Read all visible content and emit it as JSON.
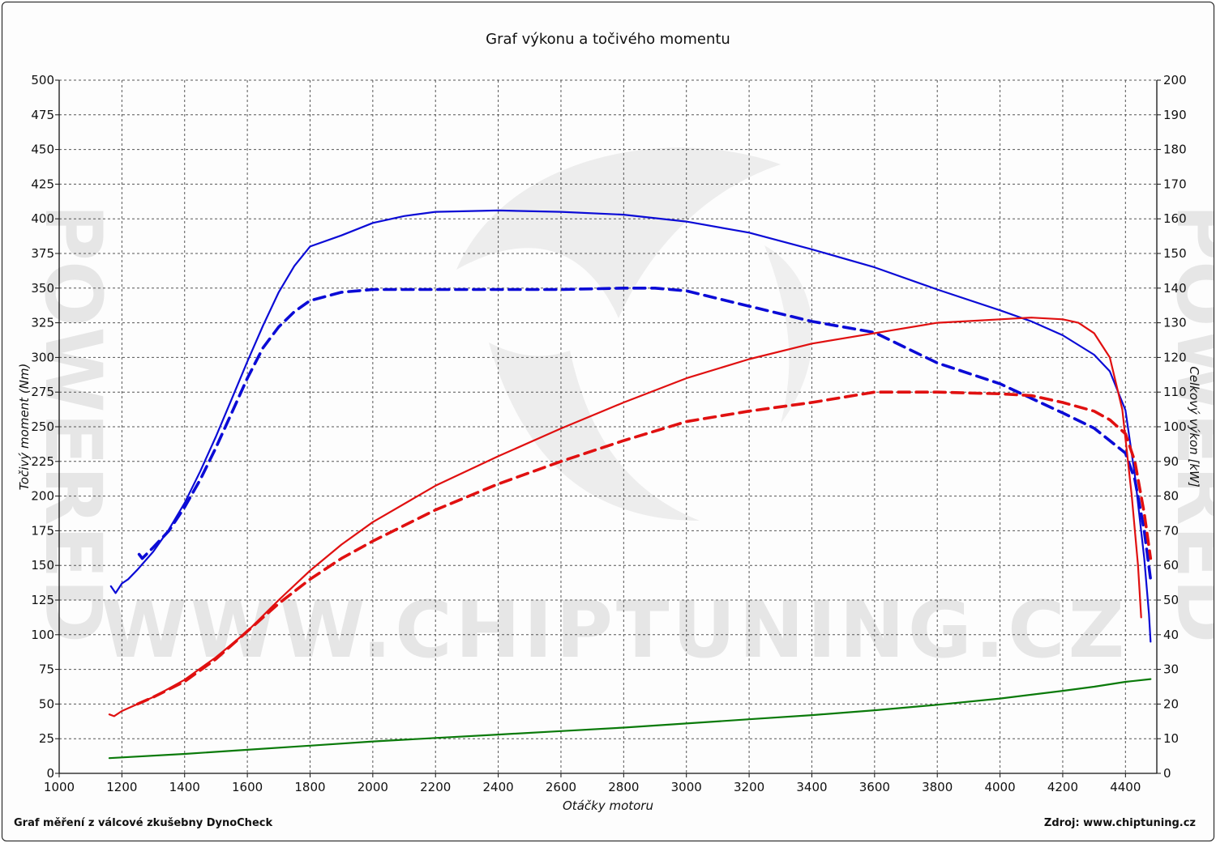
{
  "chart_data": {
    "type": "line",
    "title": "Graf výkonu a točivého momentu",
    "xlabel": "Otáčky motoru",
    "ylabel_left": "Točivý moment (Nm)",
    "ylabel_right": "Celkový výkon [kW]",
    "xlim": [
      1000,
      4500
    ],
    "ylim_left": [
      0,
      500
    ],
    "ylim_right": [
      0,
      200
    ],
    "x_ticks": [
      1000,
      1200,
      1400,
      1600,
      1800,
      2000,
      2200,
      2400,
      2600,
      2800,
      3000,
      3200,
      3400,
      3600,
      3800,
      4000,
      4200,
      4400
    ],
    "y_ticks_left": [
      0,
      25,
      50,
      75,
      100,
      125,
      150,
      175,
      200,
      225,
      250,
      275,
      300,
      325,
      350,
      375,
      400,
      425,
      450,
      475,
      500
    ],
    "y_ticks_right": [
      0,
      10,
      20,
      30,
      40,
      50,
      60,
      70,
      80,
      90,
      100,
      110,
      120,
      130,
      140,
      150,
      160,
      170,
      180,
      190,
      200
    ],
    "grid": true,
    "legend": "none",
    "series": [
      {
        "color": "#0b0bd6",
        "style": "solid",
        "axis": "left",
        "points": [
          [
            1165,
            135
          ],
          [
            1180,
            130
          ],
          [
            1200,
            137
          ],
          [
            1220,
            140
          ],
          [
            1250,
            147
          ],
          [
            1300,
            160
          ],
          [
            1350,
            176
          ],
          [
            1400,
            195
          ],
          [
            1450,
            218
          ],
          [
            1500,
            243
          ],
          [
            1550,
            270
          ],
          [
            1600,
            297
          ],
          [
            1650,
            323
          ],
          [
            1700,
            347
          ],
          [
            1750,
            366
          ],
          [
            1800,
            380
          ],
          [
            1900,
            388
          ],
          [
            2000,
            397
          ],
          [
            2100,
            402
          ],
          [
            2200,
            405
          ],
          [
            2400,
            406
          ],
          [
            2600,
            405
          ],
          [
            2800,
            403
          ],
          [
            3000,
            398
          ],
          [
            3200,
            390
          ],
          [
            3400,
            378
          ],
          [
            3600,
            365
          ],
          [
            3800,
            349
          ],
          [
            4000,
            334
          ],
          [
            4100,
            326
          ],
          [
            4200,
            316
          ],
          [
            4300,
            302
          ],
          [
            4350,
            290
          ],
          [
            4400,
            262
          ],
          [
            4430,
            215
          ],
          [
            4460,
            155
          ],
          [
            4475,
            115
          ],
          [
            4480,
            95
          ]
        ]
      },
      {
        "color": "#0b0bd6",
        "style": "dashed",
        "axis": "left",
        "points": [
          [
            1255,
            158
          ],
          [
            1265,
            155
          ],
          [
            1300,
            163
          ],
          [
            1350,
            175
          ],
          [
            1400,
            192
          ],
          [
            1450,
            212
          ],
          [
            1500,
            235
          ],
          [
            1550,
            260
          ],
          [
            1600,
            285
          ],
          [
            1650,
            307
          ],
          [
            1700,
            322
          ],
          [
            1750,
            333
          ],
          [
            1800,
            341
          ],
          [
            1900,
            347
          ],
          [
            2000,
            349
          ],
          [
            2200,
            349
          ],
          [
            2400,
            349
          ],
          [
            2600,
            349
          ],
          [
            2800,
            350
          ],
          [
            2900,
            350
          ],
          [
            3000,
            348
          ],
          [
            3200,
            337
          ],
          [
            3400,
            326
          ],
          [
            3600,
            318
          ],
          [
            3800,
            296
          ],
          [
            4000,
            281
          ],
          [
            4200,
            260
          ],
          [
            4300,
            249
          ],
          [
            4400,
            231
          ],
          [
            4430,
            212
          ],
          [
            4460,
            175
          ],
          [
            4480,
            140
          ]
        ]
      },
      {
        "color": "#e01010",
        "style": "solid",
        "axis": "right",
        "points": [
          [
            1160,
            17
          ],
          [
            1175,
            16.5
          ],
          [
            1200,
            18
          ],
          [
            1300,
            22
          ],
          [
            1400,
            27
          ],
          [
            1500,
            33.5
          ],
          [
            1600,
            41
          ],
          [
            1700,
            50
          ],
          [
            1800,
            58.5
          ],
          [
            1900,
            66
          ],
          [
            2000,
            72.5
          ],
          [
            2200,
            83
          ],
          [
            2400,
            91.5
          ],
          [
            2600,
            99.5
          ],
          [
            2800,
            107
          ],
          [
            3000,
            114
          ],
          [
            3200,
            119.5
          ],
          [
            3400,
            124
          ],
          [
            3600,
            127
          ],
          [
            3800,
            130
          ],
          [
            3900,
            130.5
          ],
          [
            4000,
            131
          ],
          [
            4100,
            131.5
          ],
          [
            4200,
            131
          ],
          [
            4250,
            130
          ],
          [
            4300,
            127
          ],
          [
            4350,
            120
          ],
          [
            4390,
            105
          ],
          [
            4420,
            80
          ],
          [
            4440,
            60
          ],
          [
            4450,
            45
          ]
        ]
      },
      {
        "color": "#e01010",
        "style": "dashed",
        "axis": "right",
        "points": [
          [
            1250,
            20
          ],
          [
            1300,
            22
          ],
          [
            1400,
            26.5
          ],
          [
            1500,
            33
          ],
          [
            1600,
            41
          ],
          [
            1700,
            49
          ],
          [
            1800,
            56
          ],
          [
            1900,
            62
          ],
          [
            2000,
            67
          ],
          [
            2200,
            76
          ],
          [
            2400,
            83.5
          ],
          [
            2600,
            90
          ],
          [
            2800,
            96
          ],
          [
            3000,
            101.5
          ],
          [
            3200,
            104.5
          ],
          [
            3400,
            107
          ],
          [
            3600,
            110
          ],
          [
            3800,
            110
          ],
          [
            4000,
            109.5
          ],
          [
            4100,
            109
          ],
          [
            4200,
            107
          ],
          [
            4300,
            104.5
          ],
          [
            4350,
            102
          ],
          [
            4400,
            98
          ],
          [
            4430,
            90
          ],
          [
            4460,
            75
          ],
          [
            4480,
            62
          ]
        ]
      },
      {
        "color": "#0a7a0a",
        "style": "solid",
        "axis": "left",
        "points": [
          [
            1160,
            11
          ],
          [
            1400,
            14
          ],
          [
            1600,
            17
          ],
          [
            1800,
            20
          ],
          [
            2000,
            23
          ],
          [
            2200,
            25.5
          ],
          [
            2400,
            28
          ],
          [
            2600,
            30.5
          ],
          [
            2800,
            33
          ],
          [
            3000,
            36
          ],
          [
            3200,
            39
          ],
          [
            3400,
            42
          ],
          [
            3600,
            45.5
          ],
          [
            3800,
            49.5
          ],
          [
            4000,
            54
          ],
          [
            4200,
            59.5
          ],
          [
            4300,
            62.5
          ],
          [
            4400,
            66
          ],
          [
            4480,
            68
          ]
        ]
      }
    ]
  },
  "watermark": {
    "url_text": "WWW.CHIPTUNING.CZ",
    "side_text": "POWERED"
  },
  "footer": {
    "left": "Graf měření z válcové zkušebny DynoCheck",
    "right": "Zdroj: www.chiptuning.cz"
  }
}
